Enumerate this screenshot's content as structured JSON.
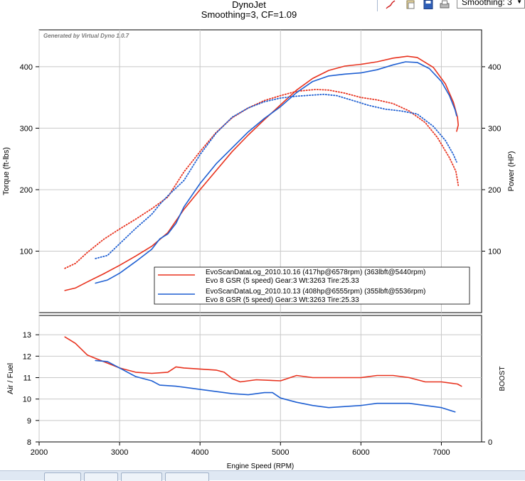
{
  "toolbar": {
    "smoothing_label": "Smoothing: 3",
    "icons": [
      "pen-icon",
      "paste-icon",
      "save-icon",
      "print-icon"
    ]
  },
  "chart_data": [
    {
      "type": "line",
      "title": "DynoJet",
      "subtitle": "Smoothing=3, CF=1.09",
      "watermark": "Generated by Virtual Dyno 1.0.7",
      "xlabel": "Engine Speed (RPM)",
      "ylabel": "Torque (ft-lbs)",
      "y2label": "Power (HP)",
      "xlim": [
        2000,
        7500
      ],
      "ylim": [
        0,
        460
      ],
      "y2lim": [
        0,
        460
      ],
      "xticks": [
        "2000",
        "3000",
        "4000",
        "5000",
        "6000",
        "7000"
      ],
      "yticks": [
        "100",
        "200",
        "300",
        "400"
      ],
      "y2ticks": [
        "100",
        "200",
        "300",
        "400"
      ],
      "grid": true,
      "legend_position": "bottom-right",
      "legend": [
        {
          "line1": "EvoScanDataLog_2010.10.16 (417hp@6578rpm) (363lbft@5440rpm)",
          "line2": "Evo 8 GSR (5 speed) Gear:3 Wt:3263 Tire:25.33",
          "color": "#e8321e"
        },
        {
          "line1": "EvoScanDataLog_2010.10.13 (408hp@6555rpm) (355lbft@5536rpm)",
          "line2": "Evo 8 GSR (5 speed) Gear:3 Wt:3263 Tire:25.33",
          "color": "#1e5fd2"
        }
      ],
      "series": [
        {
          "name": "EvoScanDataLog_2010.10.16",
          "measure": "power",
          "style": "solid",
          "color": "#e8321e",
          "x": [
            2320,
            2450,
            2600,
            2800,
            3000,
            3200,
            3400,
            3600,
            3800,
            4000,
            4200,
            4400,
            4600,
            4800,
            5000,
            5200,
            5400,
            5600,
            5800,
            6000,
            6200,
            6400,
            6578,
            6700,
            6900,
            7050,
            7150,
            7200,
            7210,
            7190
          ],
          "y": [
            36,
            40,
            50,
            63,
            77,
            92,
            108,
            130,
            168,
            200,
            231,
            262,
            289,
            314,
            338,
            362,
            381,
            394,
            401,
            404,
            408,
            414,
            417,
            415,
            399,
            372,
            342,
            318,
            305,
            295
          ]
        },
        {
          "name": "EvoScanDataLog_2010.10.16",
          "measure": "torque",
          "style": "dotted",
          "color": "#e8321e",
          "x": [
            2320,
            2450,
            2600,
            2800,
            3000,
            3200,
            3400,
            3600,
            3800,
            4000,
            4200,
            4400,
            4600,
            4800,
            5000,
            5200,
            5440,
            5600,
            5800,
            6000,
            6200,
            6400,
            6600,
            6800,
            6950,
            7100,
            7180,
            7200,
            7210
          ],
          "y": [
            72,
            80,
            98,
            119,
            136,
            152,
            169,
            188,
            229,
            262,
            293,
            317,
            333,
            345,
            353,
            360,
            363,
            362,
            357,
            350,
            346,
            340,
            328,
            309,
            285,
            252,
            230,
            215,
            207
          ]
        },
        {
          "name": "EvoScanDataLog_2010.10.13",
          "measure": "power",
          "style": "solid",
          "color": "#1e5fd2",
          "x": [
            2700,
            2850,
            3000,
            3200,
            3400,
            3500,
            3600,
            3700,
            3800,
            4000,
            4200,
            4400,
            4600,
            4800,
            5000,
            5200,
            5400,
            5600,
            5800,
            6000,
            6200,
            6400,
            6555,
            6700,
            6850,
            7000,
            7100,
            7170,
            7190
          ],
          "y": [
            48,
            53,
            64,
            83,
            103,
            120,
            128,
            145,
            172,
            210,
            242,
            268,
            294,
            316,
            335,
            358,
            376,
            385,
            388,
            390,
            395,
            403,
            408,
            407,
            397,
            376,
            353,
            330,
            320
          ]
        },
        {
          "name": "EvoScanDataLog_2010.10.13",
          "measure": "torque",
          "style": "dotted",
          "color": "#1e5fd2",
          "x": [
            2700,
            2850,
            3000,
            3200,
            3400,
            3500,
            3600,
            3800,
            4000,
            4200,
            4400,
            4600,
            4800,
            5000,
            5200,
            5536,
            5700,
            5900,
            6100,
            6300,
            6500,
            6700,
            6900,
            7050,
            7150,
            7190
          ],
          "y": [
            88,
            93,
            112,
            137,
            160,
            176,
            190,
            215,
            257,
            292,
            318,
            333,
            343,
            349,
            352,
            355,
            353,
            345,
            337,
            331,
            328,
            323,
            303,
            280,
            257,
            245
          ]
        }
      ]
    },
    {
      "type": "line",
      "xlabel": "Engine Speed (RPM)",
      "ylabel": "Air / Fuel",
      "y2label": "BOOST",
      "xlim": [
        2000,
        7500
      ],
      "ylim": [
        8,
        13.9
      ],
      "xticks": [
        "2000",
        "3000",
        "4000",
        "5000",
        "6000",
        "7000"
      ],
      "yticks": [
        "8",
        "9",
        "10",
        "11",
        "12",
        "13"
      ],
      "y2ticks": [
        "0"
      ],
      "grid": true,
      "series": [
        {
          "name": "EvoScanDataLog_2010.10.16",
          "color": "#e8321e",
          "x": [
            2320,
            2450,
            2600,
            2800,
            3000,
            3200,
            3400,
            3600,
            3700,
            3800,
            4000,
            4200,
            4300,
            4400,
            4500,
            4700,
            5000,
            5200,
            5400,
            5700,
            6000,
            6200,
            6400,
            6600,
            6800,
            7000,
            7200,
            7250
          ],
          "y": [
            12.9,
            12.6,
            12.05,
            11.75,
            11.45,
            11.25,
            11.2,
            11.25,
            11.5,
            11.45,
            11.4,
            11.35,
            11.25,
            10.95,
            10.8,
            10.9,
            10.85,
            11.1,
            11.0,
            11.0,
            11.0,
            11.1,
            11.1,
            11.0,
            10.8,
            10.8,
            10.7,
            10.6
          ]
        },
        {
          "name": "EvoScanDataLog_2010.10.13",
          "color": "#1e5fd2",
          "x": [
            2700,
            2850,
            3000,
            3200,
            3400,
            3500,
            3700,
            4000,
            4200,
            4400,
            4600,
            4800,
            4900,
            5000,
            5200,
            5400,
            5600,
            5800,
            6000,
            6200,
            6400,
            6600,
            6800,
            7000,
            7170
          ],
          "y": [
            11.8,
            11.75,
            11.45,
            11.05,
            10.85,
            10.65,
            10.6,
            10.45,
            10.35,
            10.25,
            10.2,
            10.3,
            10.3,
            10.05,
            9.85,
            9.7,
            9.6,
            9.65,
            9.7,
            9.8,
            9.8,
            9.8,
            9.7,
            9.6,
            9.4
          ]
        }
      ]
    }
  ]
}
